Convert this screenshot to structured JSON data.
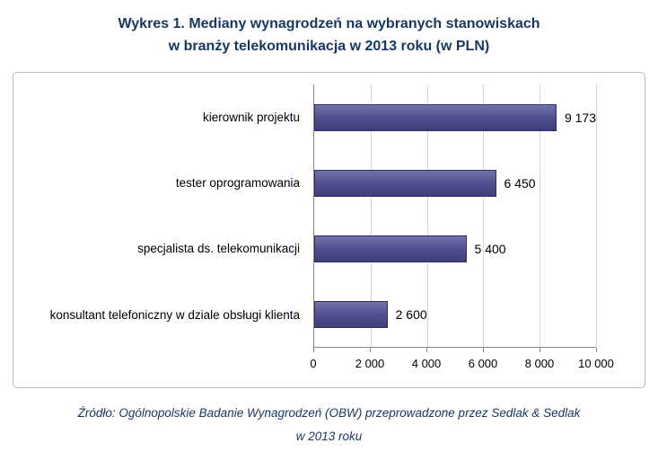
{
  "title": {
    "line1": "Wykres 1. Mediany wynagrodzeń na wybranych stanowiskach",
    "line2": "w branży telekomunikacja w 2013 roku (w PLN)"
  },
  "source": {
    "line1": "Źródło: Ogólnopolskie Badanie Wynagrodzeń (OBW) przeprowadzone przez Sedlak & Sedlak",
    "line2": "w 2013 roku"
  },
  "colors": {
    "title_text": "#17375E",
    "bar_fill": "#50508E",
    "bar_border": "#31315E",
    "gridline": "#D8D8D8",
    "axis_line": "#898989",
    "chart_border": "#BFBFBF"
  },
  "chart_data": {
    "type": "bar",
    "orientation": "horizontal",
    "title": "Wykres 1. Mediany wynagrodzeń na wybranych stanowiskach w branży telekomunikacja w 2013 roku (w PLN)",
    "categories": [
      "kierownik projektu",
      "tester oprogramowania",
      "specjalista ds. telekomunikacji",
      "konsultant telefoniczny w dziale obsługi klienta"
    ],
    "values": [
      9173,
      6450,
      5400,
      2600
    ],
    "value_labels": [
      "9 173",
      "6 450",
      "5 400",
      "2 600"
    ],
    "xlabel": "",
    "ylabel": "",
    "xlim": [
      0,
      10000
    ],
    "x_ticks": [
      0,
      2000,
      4000,
      6000,
      8000,
      10000
    ],
    "x_tick_labels": [
      "0",
      "2 000",
      "4 000",
      "6 000",
      "8 000",
      "10 000"
    ],
    "grid": "vertical",
    "legend": "none"
  }
}
